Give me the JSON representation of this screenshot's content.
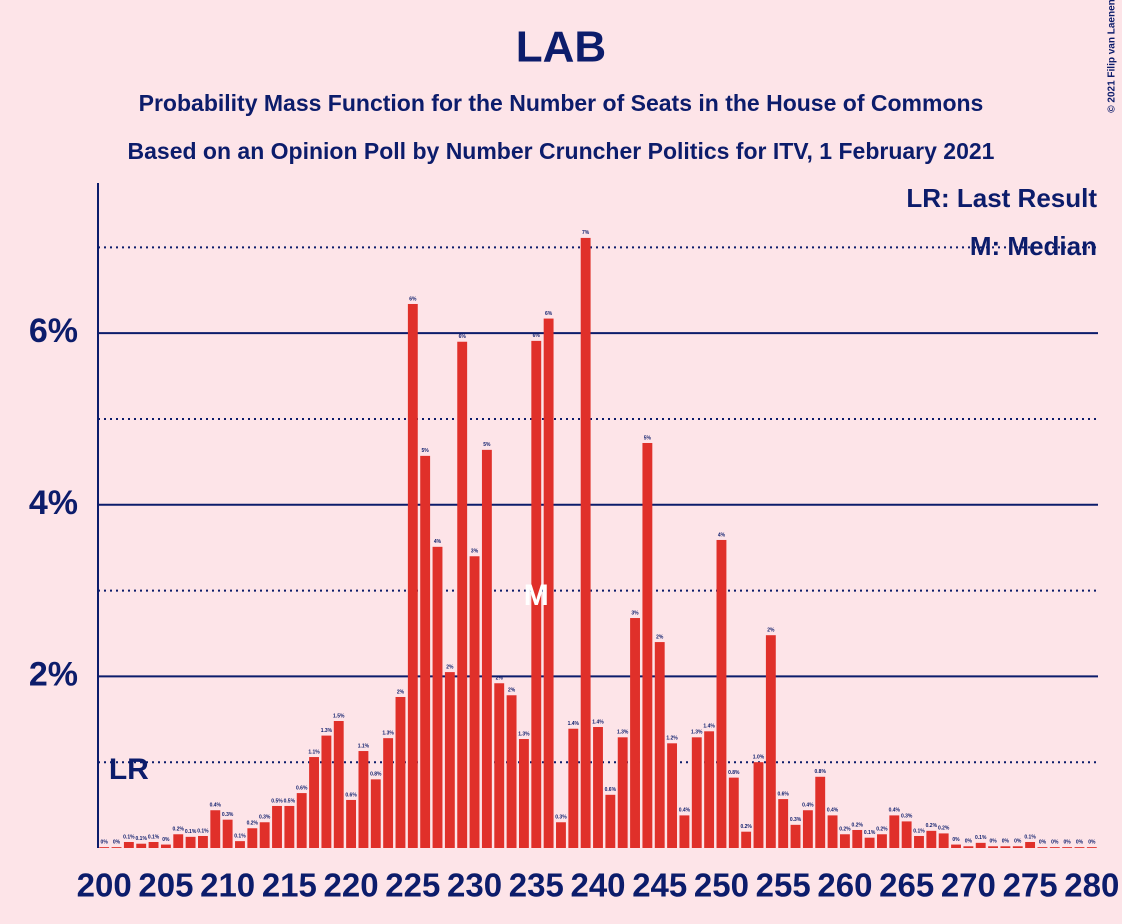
{
  "chart_data": {
    "type": "bar",
    "title": "LAB",
    "subtitle": [
      "Probability Mass Function for the Number of Seats in the House of Commons",
      "Based on an Opinion Poll by Number Cruncher Politics for ITV, 1 February 2021"
    ],
    "x": [
      200,
      201,
      202,
      203,
      204,
      205,
      206,
      207,
      208,
      209,
      210,
      211,
      212,
      213,
      214,
      215,
      216,
      217,
      218,
      219,
      220,
      221,
      222,
      223,
      224,
      225,
      226,
      227,
      228,
      229,
      230,
      231,
      232,
      233,
      234,
      235,
      236,
      237,
      238,
      239,
      240,
      241,
      242,
      243,
      244,
      245,
      246,
      247,
      248,
      249,
      250,
      251,
      252,
      253,
      254,
      255,
      256,
      257,
      258,
      259,
      260,
      261,
      262,
      263,
      264,
      265,
      266,
      267,
      268,
      269,
      270,
      271,
      272,
      273,
      274,
      275,
      276,
      277,
      278,
      279,
      280
    ],
    "values": [
      0.01,
      0.01,
      0.07,
      0.05,
      0.07,
      0.04,
      0.16,
      0.13,
      0.14,
      0.44,
      0.33,
      0.08,
      0.23,
      0.3,
      0.49,
      0.49,
      0.64,
      1.06,
      1.31,
      1.48,
      0.56,
      1.13,
      0.8,
      1.28,
      1.76,
      6.34,
      4.57,
      3.51,
      2.05,
      5.9,
      3.4,
      4.64,
      1.92,
      1.78,
      1.27,
      5.91,
      6.17,
      0.3,
      1.39,
      7.11,
      1.41,
      0.62,
      1.29,
      2.68,
      4.72,
      2.4,
      1.22,
      0.38,
      1.29,
      1.36,
      3.59,
      0.82,
      0.19,
      1.0,
      2.48,
      0.57,
      0.27,
      0.44,
      0.83,
      0.38,
      0.16,
      0.21,
      0.12,
      0.16,
      0.38,
      0.31,
      0.14,
      0.2,
      0.17,
      0.04,
      0.02,
      0.06,
      0.02,
      0.02,
      0.02,
      0.07,
      0.01,
      0.01,
      0.01,
      0.01,
      0.01
    ],
    "value_labels": [
      "0%",
      "0%",
      "0.1%",
      "0.1%",
      "0.1%",
      "0%",
      "0.2%",
      "0.1%",
      "0.1%",
      "0.4%",
      "0.3%",
      "0.1%",
      "0.2%",
      "0.3%",
      "0.5%",
      "0.5%",
      "0.6%",
      "1.1%",
      "1.3%",
      "1.5%",
      "0.6%",
      "1.1%",
      "0.8%",
      "1.3%",
      "2%",
      "6%",
      "5%",
      "4%",
      "2%",
      "6%",
      "3%",
      "5%",
      "2%",
      "2%",
      "1.3%",
      "6%",
      "6%",
      "0.3%",
      "1.4%",
      "7%",
      "1.4%",
      "0.6%",
      "1.3%",
      "3%",
      "5%",
      "2%",
      "1.2%",
      "0.4%",
      "1.3%",
      "1.4%",
      "4%",
      "0.8%",
      "0.2%",
      "1.0%",
      "2%",
      "0.6%",
      "0.3%",
      "0.4%",
      "0.8%",
      "0.4%",
      "0.2%",
      "0.2%",
      "0.1%",
      "0.2%",
      "0.4%",
      "0.3%",
      "0.1%",
      "0.2%",
      "0.2%",
      "0%",
      "0%",
      "0.1%",
      "0%",
      "0%",
      "0%",
      "0.1%",
      "0%",
      "0%",
      "0%",
      "0%",
      "0%"
    ],
    "color": "#e0302a",
    "xlim": [
      199.5,
      280.5
    ],
    "xticks": [
      200,
      205,
      210,
      215,
      220,
      225,
      230,
      235,
      240,
      245,
      250,
      255,
      260,
      265,
      270,
      275,
      280
    ],
    "ylim": [
      0,
      7.75
    ],
    "yticks": [
      {
        "value": 2,
        "label": "2%"
      },
      {
        "value": 4,
        "label": "4%"
      },
      {
        "value": 6,
        "label": "6%"
      }
    ],
    "minor_yticks": [
      1,
      3,
      5,
      7
    ],
    "grid": true,
    "annotations": [
      {
        "text": "LR",
        "x": 202
      },
      {
        "text": "M",
        "x": 235
      }
    ],
    "legend": [
      "LR: Last Result",
      "M: Median"
    ],
    "legend_position": "top-right",
    "credit": "© 2021 Filip van Laenen"
  }
}
